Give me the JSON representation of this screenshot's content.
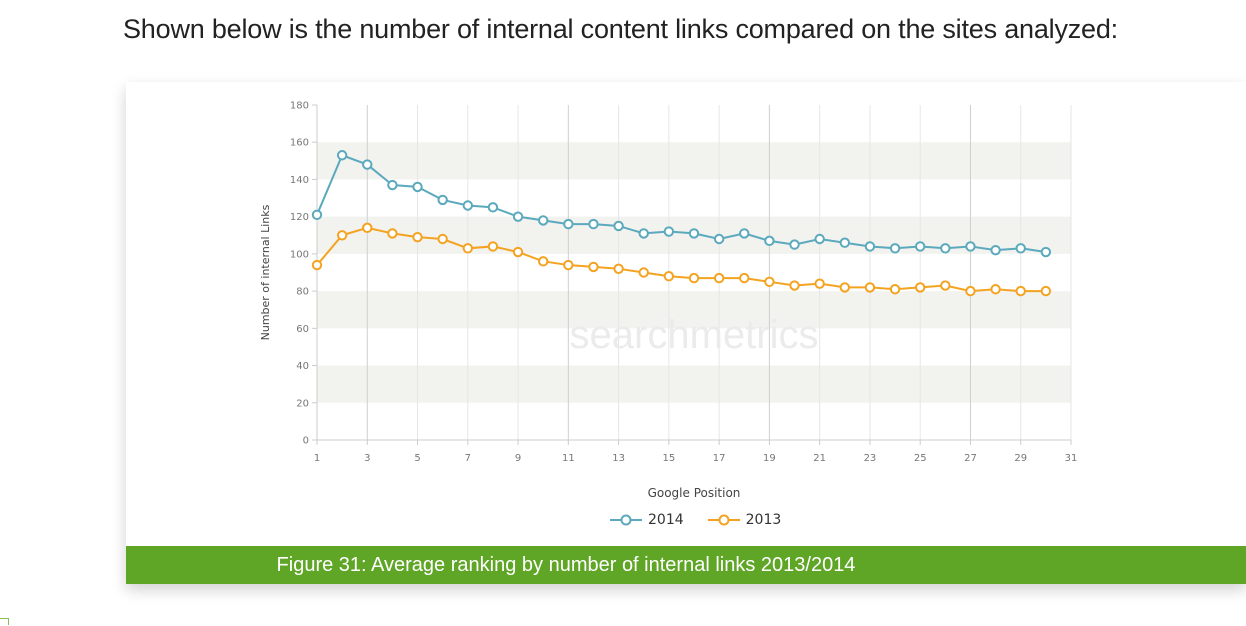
{
  "intro_text": "Shown below is the number of internal content links compared on the sites analyzed:",
  "caption": "Figure 31: Average ranking by number of internal links 2013/2014",
  "watermark": "searchmetrics",
  "colors": {
    "s2014": "#5ba9bd",
    "s2013": "#f4a321",
    "caption_bg": "#5fa526"
  },
  "chart_data": {
    "type": "line",
    "xlabel": "Google Position",
    "ylabel": "Number of internal Links",
    "xlim": [
      1,
      31
    ],
    "ylim": [
      0,
      180
    ],
    "x_ticks": [
      "1",
      "3",
      "5",
      "7",
      "9",
      "11",
      "13",
      "15",
      "17",
      "19",
      "21",
      "23",
      "25",
      "27",
      "29",
      "31"
    ],
    "y_ticks": [
      "0",
      "20",
      "40",
      "60",
      "80",
      "100",
      "120",
      "140",
      "160",
      "180"
    ],
    "grid": true,
    "legend_position": "bottom-center",
    "x": [
      1,
      2,
      3,
      4,
      5,
      6,
      7,
      8,
      9,
      10,
      11,
      12,
      13,
      14,
      15,
      16,
      17,
      18,
      19,
      20,
      21,
      22,
      23,
      24,
      25,
      26,
      27,
      28,
      29,
      30
    ],
    "series": [
      {
        "name": "2014",
        "color": "#5ba9bd",
        "values": [
          121,
          153,
          148,
          137,
          136,
          129,
          126,
          125,
          120,
          118,
          116,
          116,
          115,
          111,
          112,
          111,
          108,
          111,
          107,
          105,
          108,
          106,
          104,
          103,
          104,
          103,
          104,
          102,
          103,
          101
        ]
      },
      {
        "name": "2013",
        "color": "#f4a321",
        "values": [
          94,
          110,
          114,
          111,
          109,
          108,
          103,
          104,
          101,
          96,
          94,
          93,
          92,
          90,
          88,
          87,
          87,
          87,
          85,
          83,
          84,
          82,
          82,
          81,
          82,
          83,
          80,
          81,
          80,
          80
        ]
      }
    ]
  }
}
